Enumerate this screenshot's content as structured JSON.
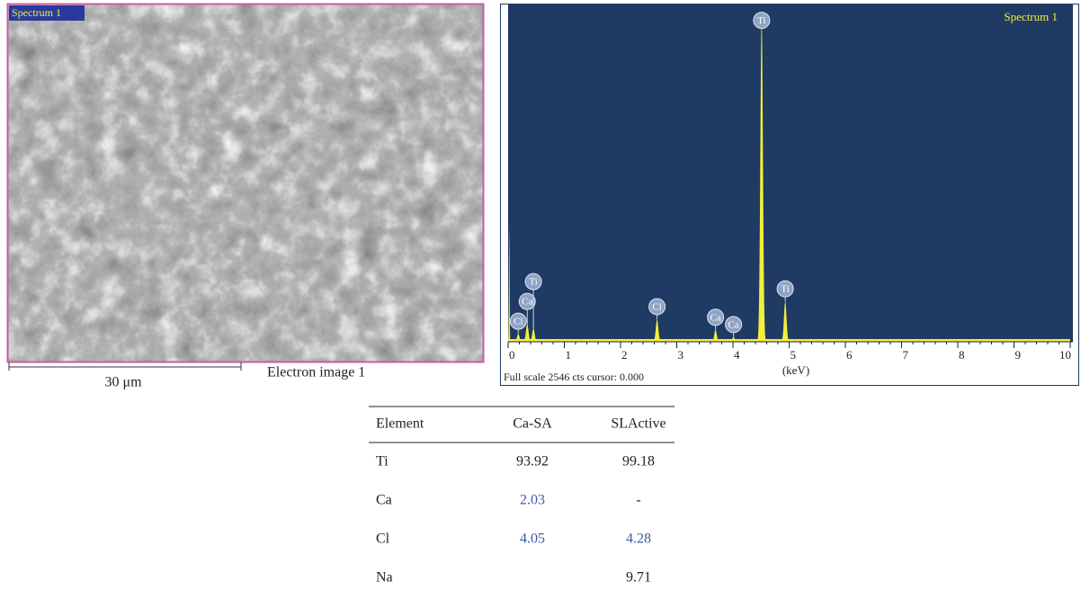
{
  "image": {
    "tag": "Spectrum 1",
    "scale_bar": "30 μm",
    "caption": "Electron image 1"
  },
  "chart_data": {
    "type": "spectrum",
    "tag": "Spectrum 1",
    "footer": "Full scale 2546 cts cursor: 0.000",
    "x_label": "(keV)",
    "xlim": [
      0,
      10
    ],
    "xticks": [
      0,
      1,
      2,
      3,
      4,
      5,
      6,
      7,
      8,
      9,
      10
    ],
    "ylim": [
      0,
      2546
    ],
    "color": "#f2ef3a",
    "background": "#1f3a63",
    "peaks": [
      {
        "element": null,
        "x": 0.02,
        "counts": 850
      },
      {
        "element": "Cl",
        "x": 0.18,
        "counts": 60
      },
      {
        "element": "Ca",
        "x": 0.34,
        "counts": 135
      },
      {
        "element": "Ti",
        "x": 0.45,
        "counts": 100
      },
      {
        "element": "Cl",
        "x": 2.65,
        "counts": 170
      },
      {
        "element": "Ca",
        "x": 3.69,
        "counts": 90
      },
      {
        "element": "Ca",
        "x": 4.01,
        "counts": 35
      },
      {
        "element": "Ti",
        "x": 4.51,
        "counts": 2440
      },
      {
        "element": "Ti",
        "x": 4.93,
        "counts": 305
      }
    ]
  },
  "table": {
    "header": [
      "Element",
      "Ca-SA",
      "SLActive"
    ],
    "rows": [
      [
        "Ti",
        93.92,
        99.18
      ],
      [
        "Ca",
        2.03,
        "-"
      ],
      [
        "Cl",
        4.05,
        4.28
      ],
      [
        "Na",
        "",
        9.71
      ]
    ],
    "highlight": {
      "color": "#3b5ba9",
      "cells": [
        [
          1,
          1
        ],
        [
          2,
          1
        ],
        [
          2,
          2
        ]
      ]
    }
  }
}
